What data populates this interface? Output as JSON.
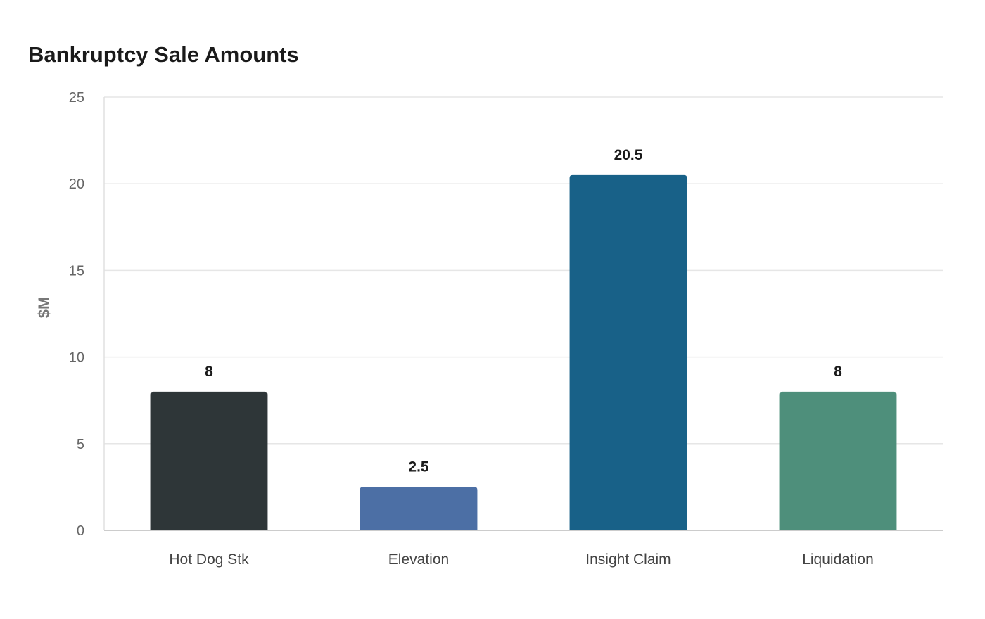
{
  "chart_data": {
    "type": "bar",
    "title": "Bankruptcy Sale Amounts",
    "xlabel": "",
    "ylabel": "$M",
    "categories": [
      "Hot Dog Stk",
      "Elevation",
      "Insight Claim",
      "Liquidation"
    ],
    "values": [
      8,
      2.5,
      20.5,
      8
    ],
    "data_labels": [
      "8",
      "2.5",
      "20.5",
      "8"
    ],
    "colors": [
      "#2e3638",
      "#4c6fa5",
      "#186188",
      "#4e8f7b"
    ],
    "ylim": [
      0,
      25
    ],
    "yticks": [
      0,
      5,
      10,
      15,
      20,
      25
    ],
    "ytick_labels": [
      "0",
      "5",
      "10",
      "15",
      "20",
      "25"
    ],
    "grid": true,
    "legend": "none"
  }
}
